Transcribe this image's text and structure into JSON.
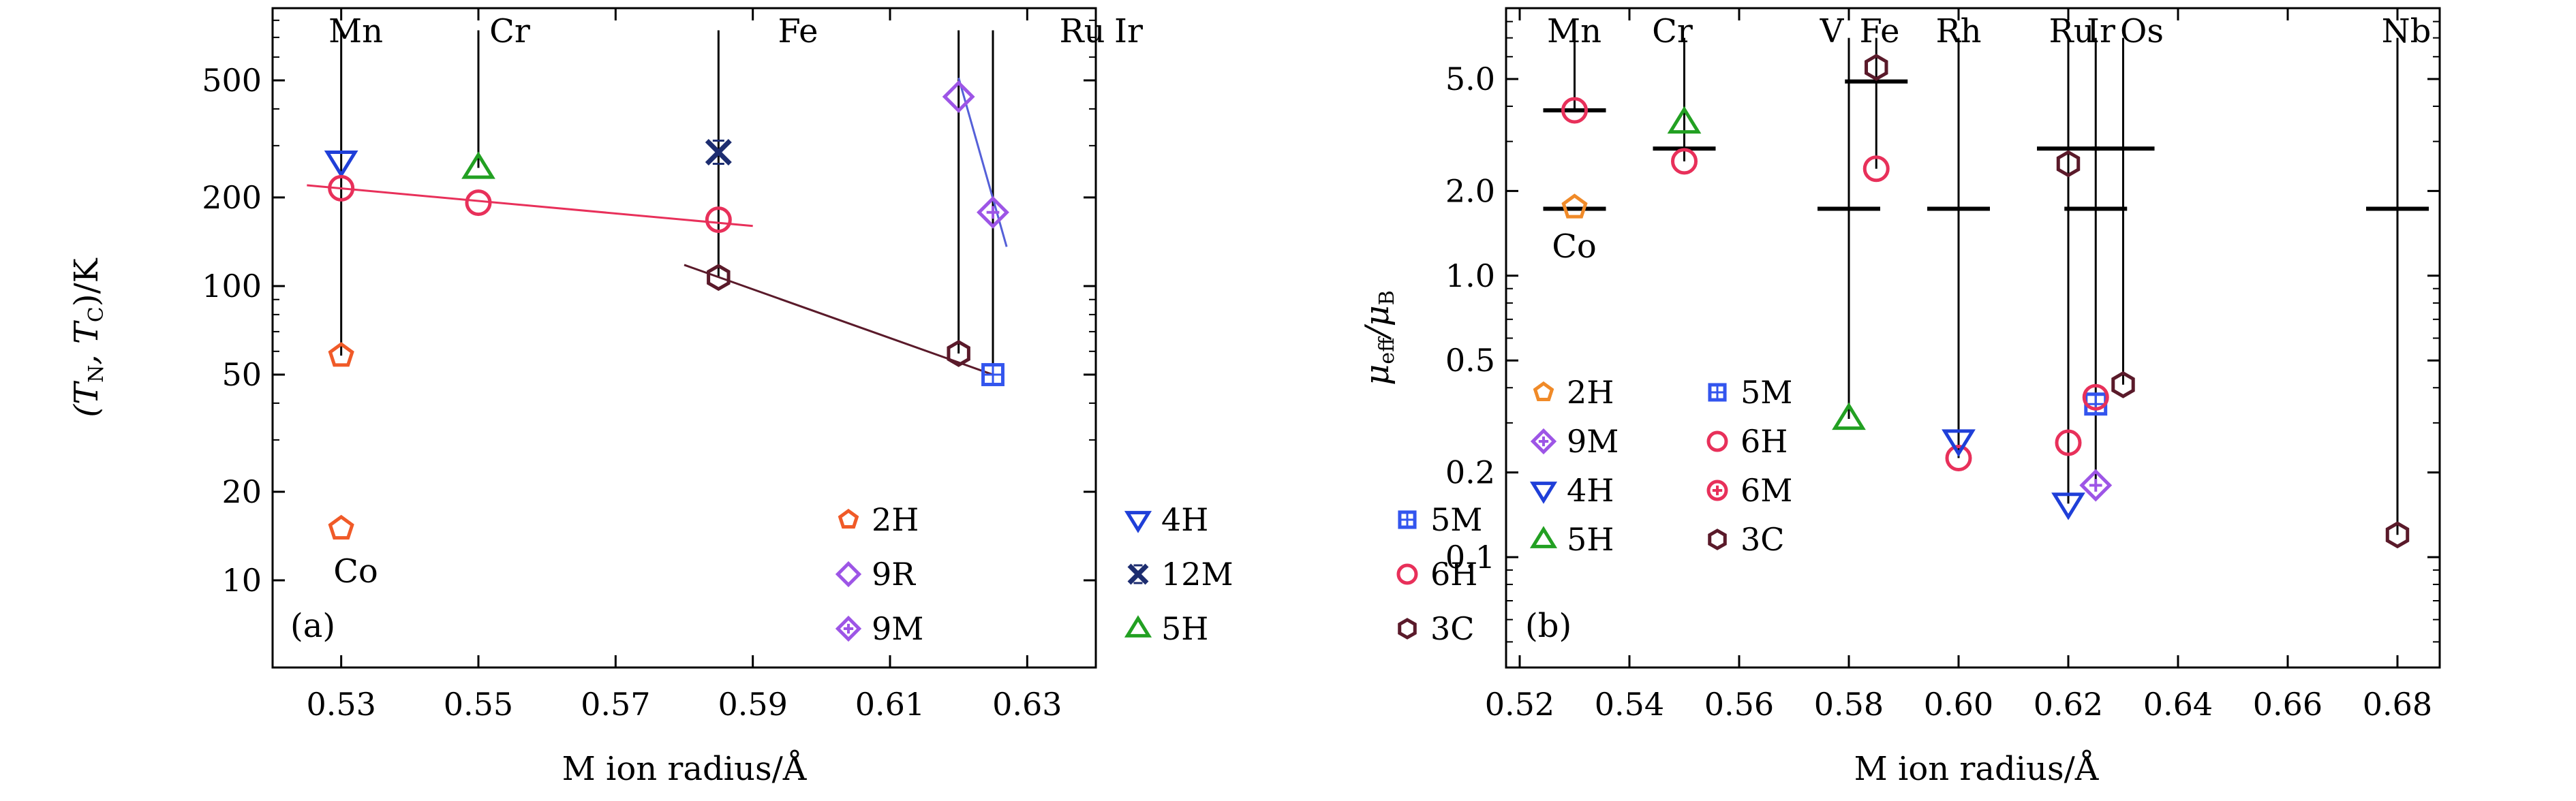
{
  "chart_data": [
    {
      "type": "scatter",
      "panel_label": "(a)",
      "xlabel": "M ion radius/Å",
      "ylabel": [
        "(T",
        "N",
        ", T",
        "C",
        ")/K"
      ],
      "xlim": [
        0.52,
        0.64
      ],
      "ylim": [
        5,
        900
      ],
      "yscale": "log",
      "xticks": [
        "0.53",
        "0.55",
        "0.57",
        "0.59",
        "0.61",
        "0.63"
      ],
      "yticks": [
        "10",
        "20",
        "50",
        "100",
        "200",
        "500"
      ],
      "element_labels": [
        "Mn",
        "Cr",
        "Fe",
        "Ru",
        "Ir"
      ],
      "extra_labels": [
        "Co"
      ],
      "legend": {
        "position": "bottom-right",
        "entries": [
          "2H",
          "4H",
          "5M",
          "9R",
          "12M",
          "6H",
          "9M",
          "5H",
          "3C"
        ]
      },
      "series": [
        {
          "name": "2H",
          "marker": "pentagon",
          "color": "#f05a28",
          "points": [
            [
              0.53,
              58
            ],
            [
              0.53,
              15
            ]
          ]
        },
        {
          "name": "4H",
          "marker": "triangle-down",
          "color": "#1f3fd8",
          "points": [
            [
              0.53,
              265
            ]
          ]
        },
        {
          "name": "5M",
          "marker": "square-plus",
          "color": "#3355ee",
          "points": [
            [
              0.625,
              50
            ]
          ]
        },
        {
          "name": "9R",
          "marker": "diamond",
          "color": "#9d55e6",
          "points": [
            [
              0.62,
              440
            ]
          ]
        },
        {
          "name": "12M",
          "marker": "x-cross",
          "color": "#1d2d70",
          "points": [
            [
              0.585,
              285
            ]
          ]
        },
        {
          "name": "6H",
          "marker": "circle",
          "color": "#e8305a",
          "points": [
            [
              0.53,
              215
            ],
            [
              0.55,
              192
            ],
            [
              0.585,
              168
            ]
          ]
        },
        {
          "name": "9M",
          "marker": "diamond-plus",
          "color": "#9d55e6",
          "points": [
            [
              0.625,
              178
            ]
          ]
        },
        {
          "name": "5H",
          "marker": "triangle-up",
          "color": "#22a022",
          "points": [
            [
              0.55,
              252
            ]
          ]
        },
        {
          "name": "3C",
          "marker": "hexagon",
          "color": "#5a1a2a",
          "points": [
            [
              0.585,
              107
            ],
            [
              0.62,
              59
            ]
          ]
        }
      ],
      "fit_lines": [
        {
          "color": "#e8305a",
          "points": [
            [
              0.525,
              220
            ],
            [
              0.59,
              160
            ]
          ]
        },
        {
          "color": "#5a1a2a",
          "points": [
            [
              0.58,
              118
            ],
            [
              0.625,
              50
            ]
          ]
        },
        {
          "color": "#5560d8",
          "points": [
            [
              0.62,
              510
            ],
            [
              0.627,
              136
            ]
          ]
        }
      ],
      "vertical_lines": [
        {
          "x": 0.53,
          "y_top": 740,
          "y_bottom": 58
        },
        {
          "x": 0.55,
          "y_top": 740,
          "y_bottom": 252
        },
        {
          "x": 0.585,
          "y_top": 740,
          "y_bottom": 107
        },
        {
          "x": 0.62,
          "y_top": 740,
          "y_bottom": 59
        },
        {
          "x": 0.625,
          "y_top": 740,
          "y_bottom": 50
        }
      ]
    },
    {
      "type": "scatter",
      "panel_label": "(b)",
      "xlabel": "M ion radius/Å",
      "ylabel": [
        "μ",
        "eff",
        "/μ",
        "B"
      ],
      "xlim": [
        0.52,
        0.69
      ],
      "ylim": [
        0.045,
        8.2
      ],
      "yscale": "log",
      "xticks": [
        "0.52",
        "0.54",
        "0.56",
        "0.58",
        "0.60",
        "0.62",
        "0.64",
        "0.66",
        "0.68"
      ],
      "yticks": [
        "0.1",
        "0.2",
        "0.5",
        "1.0",
        "2.0",
        "5.0"
      ],
      "element_labels": [
        "Mn",
        "Cr",
        "V",
        "Fe",
        "Rh",
        "Ru",
        "Ir",
        "Os",
        "Nb"
      ],
      "extra_labels": [
        "Co"
      ],
      "legend": {
        "position": "bottom-left",
        "entries": [
          "2H",
          "5M",
          "9M",
          "6H",
          "4H",
          "6M",
          "5H",
          "3C"
        ]
      },
      "series": [
        {
          "name": "2H",
          "marker": "pentagon",
          "color": "#f08a28",
          "points": [
            [
              0.53,
              1.75
            ]
          ]
        },
        {
          "name": "5M",
          "marker": "square-plus",
          "color": "#3355ee",
          "points": [
            [
              0.625,
              0.35
            ]
          ]
        },
        {
          "name": "9M",
          "marker": "diamond-plus",
          "color": "#9d55e6",
          "points": [
            [
              0.625,
              0.18
            ]
          ]
        },
        {
          "name": "6H",
          "marker": "circle",
          "color": "#e8305a",
          "points": [
            [
              0.53,
              3.87
            ],
            [
              0.55,
              2.55
            ],
            [
              0.585,
              2.4
            ],
            [
              0.6,
              0.225
            ],
            [
              0.62,
              0.255
            ],
            [
              0.625,
              0.37
            ]
          ]
        },
        {
          "name": "4H",
          "marker": "triangle-down",
          "color": "#1f3fd8",
          "points": [
            [
              0.6,
              0.26
            ],
            [
              0.62,
              0.155
            ]
          ]
        },
        {
          "name": "6M",
          "marker": "circle-plus",
          "color": "#e8305a",
          "points": []
        },
        {
          "name": "5H",
          "marker": "triangle-up",
          "color": "#22a022",
          "points": [
            [
              0.55,
              3.5
            ],
            [
              0.58,
              0.31
            ]
          ]
        },
        {
          "name": "3C",
          "marker": "hexagon",
          "color": "#5a1a2a",
          "points": [
            [
              0.585,
              5.5
            ],
            [
              0.62,
              2.5
            ],
            [
              0.63,
              0.41
            ],
            [
              0.68,
              0.12
            ]
          ]
        }
      ],
      "dashes": [
        {
          "x": 0.53,
          "y": 3.87
        },
        {
          "x": 0.53,
          "y": 1.73
        },
        {
          "x": 0.55,
          "y": 2.83
        },
        {
          "x": 0.58,
          "y": 1.73
        },
        {
          "x": 0.585,
          "y": 4.9
        },
        {
          "x": 0.6,
          "y": 1.73
        },
        {
          "x": 0.62,
          "y": 2.83
        },
        {
          "x": 0.625,
          "y": 1.73
        },
        {
          "x": 0.63,
          "y": 2.83
        },
        {
          "x": 0.68,
          "y": 1.73
        }
      ],
      "vertical_lines": [
        {
          "x": 0.53,
          "y_top": 7.0,
          "y_bottom": 3.87
        },
        {
          "x": 0.55,
          "y_top": 7.0,
          "y_bottom": 2.55
        },
        {
          "x": 0.58,
          "y_top": 7.0,
          "y_bottom": 0.31
        },
        {
          "x": 0.585,
          "y_top": 7.0,
          "y_bottom": 2.4
        },
        {
          "x": 0.6,
          "y_top": 7.0,
          "y_bottom": 0.225
        },
        {
          "x": 0.62,
          "y_top": 7.0,
          "y_bottom": 0.155
        },
        {
          "x": 0.625,
          "y_top": 7.0,
          "y_bottom": 0.18
        },
        {
          "x": 0.63,
          "y_top": 7.0,
          "y_bottom": 0.41
        },
        {
          "x": 0.68,
          "y_top": 7.0,
          "y_bottom": 0.12
        }
      ]
    }
  ]
}
